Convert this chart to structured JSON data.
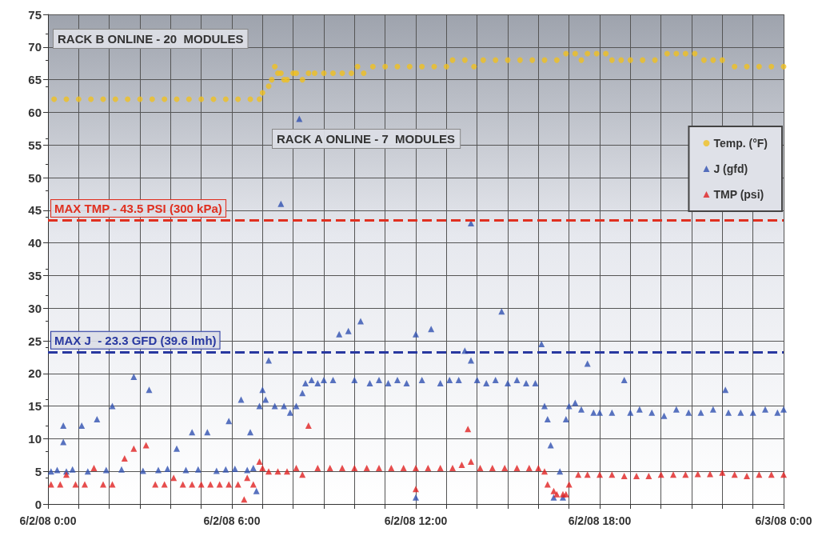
{
  "chart_data": {
    "type": "scatter",
    "marker": "triangle",
    "grid": true,
    "legend": "top right",
    "xlim": [
      "--06-02T00:00",
      "--06-03T00:00"
    ],
    "xticks": [
      {
        "value": "--06-02T00:00",
        "label": "6/2/08 0:00"
      },
      {
        "value": "--06-02T01:00",
        "label": null
      },
      {
        "value": "--06-02T02:00",
        "label": null
      },
      {
        "value": "--06-02T03:00",
        "label": null
      },
      {
        "value": "--06-02T04:00",
        "label": null
      },
      {
        "value": "--06-02T05:00",
        "label": null
      },
      {
        "value": "--06-02T06:00",
        "label": "6/2/08 6:00"
      },
      {
        "value": "--06-02T07:00",
        "label": null
      },
      {
        "value": "--06-02T08:00",
        "label": null
      },
      {
        "value": "--06-02T09:00",
        "label": null
      },
      {
        "value": "--06-02T10:00",
        "label": null
      },
      {
        "value": "--06-02T11:00",
        "label": null
      },
      {
        "value": "--06-02T12:00",
        "label": "6/2/08 12:00"
      },
      {
        "value": "--06-02T13:00",
        "label": null
      },
      {
        "value": "--06-02T14:00",
        "label": null
      },
      {
        "value": "--06-02T15:00",
        "label": null
      },
      {
        "value": "--06-02T16:00",
        "label": null
      },
      {
        "value": "--06-02T17:00",
        "label": null
      },
      {
        "value": "--06-02T18:00",
        "label": "6/2/08 18:00"
      },
      {
        "value": "--06-02T19:00",
        "label": null
      },
      {
        "value": "--06-02T20:00",
        "label": null
      },
      {
        "value": "--06-02T21:00",
        "label": null
      },
      {
        "value": "--06-02T22:00",
        "label": null
      },
      {
        "value": "--06-02T23:00",
        "label": null
      },
      {
        "value": "--06-03T00:00",
        "label": "6/3/08 0:00"
      }
    ],
    "ylim": [
      0,
      75
    ],
    "yticks": [
      0,
      5,
      10,
      15,
      20,
      25,
      30,
      35,
      40,
      45,
      50,
      55,
      60,
      65,
      70,
      75
    ],
    "ref_lines": [
      {
        "axis": "y",
        "value": 43.5,
        "label": "MAX TMP - 43.5 PSI (300 kPa)",
        "color": "#e03020",
        "line_style": "dashed"
      },
      {
        "axis": "y",
        "value": 23.3,
        "label": "MAX J  - 23.3 GFD (39.6 lmh)",
        "color": "#2838a0",
        "line_style": "dashed"
      }
    ],
    "annotations": [
      "RACK B ONLINE - 20  MODULES",
      "RACK A ONLINE - 7  MODULES"
    ],
    "series": [
      {
        "name": "Temp. (°F)",
        "color": "#f0c020",
        "marker": "circle",
        "x": [
          "--06-02T00:12",
          "--06-02T00:36",
          "--06-02T01:00",
          "--06-02T01:24",
          "--06-02T01:48",
          "--06-02T02:12",
          "--06-02T02:36",
          "--06-02T03:00",
          "--06-02T03:24",
          "--06-02T03:48",
          "--06-02T04:12",
          "--06-02T04:36",
          "--06-02T05:00",
          "--06-02T05:24",
          "--06-02T05:48",
          "--06-02T06:12",
          "--06-02T06:36",
          "--06-02T06:54",
          "--06-02T07:00",
          "--06-02T07:12",
          "--06-02T07:18",
          "--06-02T07:24",
          "--06-02T07:30",
          "--06-02T07:36",
          "--06-02T07:42",
          "--06-02T07:48",
          "--06-02T08:00",
          "--06-02T08:06",
          "--06-02T08:18",
          "--06-02T08:30",
          "--06-02T08:42",
          "--06-02T09:00",
          "--06-02T09:18",
          "--06-02T09:36",
          "--06-02T09:54",
          "--06-02T10:06",
          "--06-02T10:18",
          "--06-02T10:36",
          "--06-02T11:00",
          "--06-02T11:24",
          "--06-02T11:48",
          "--06-02T12:12",
          "--06-02T12:36",
          "--06-02T13:00",
          "--06-02T13:12",
          "--06-02T13:36",
          "--06-02T13:54",
          "--06-02T14:12",
          "--06-02T14:36",
          "--06-02T15:00",
          "--06-02T15:24",
          "--06-02T15:48",
          "--06-02T16:12",
          "--06-02T16:36",
          "--06-02T16:54",
          "--06-02T17:12",
          "--06-02T17:24",
          "--06-02T17:36",
          "--06-02T17:54",
          "--06-02T18:12",
          "--06-02T18:24",
          "--06-02T18:42",
          "--06-02T19:00",
          "--06-02T19:24",
          "--06-02T19:48",
          "--06-02T20:12",
          "--06-02T20:30",
          "--06-02T20:48",
          "--06-02T21:06",
          "--06-02T21:24",
          "--06-02T21:42",
          "--06-02T22:00",
          "--06-02T22:24",
          "--06-02T22:48",
          "--06-02T23:12",
          "--06-02T23:36",
          "--06-03T00:00"
        ],
        "values": [
          62,
          62,
          62,
          62,
          62,
          62,
          62,
          62,
          62,
          62,
          62,
          62,
          62,
          62,
          62,
          62,
          62,
          62,
          63,
          64,
          65,
          67,
          66,
          66,
          65,
          65,
          66,
          66,
          65,
          66,
          66,
          66,
          66,
          66,
          66,
          67,
          66,
          67,
          67,
          67,
          67,
          67,
          67,
          67,
          68,
          68,
          67,
          68,
          68,
          68,
          68,
          68,
          68,
          68,
          69,
          69,
          68,
          69,
          69,
          69,
          68,
          68,
          68,
          68,
          68,
          69,
          69,
          69,
          69,
          68,
          68,
          68,
          67,
          67,
          67,
          67,
          67
        ]
      },
      {
        "name": "J (gfd)",
        "color": "#3050b0",
        "x": [
          "--06-02T00:06",
          "--06-02T00:18",
          "--06-02T00:30",
          "--06-02T00:30",
          "--06-02T00:36",
          "--06-02T00:48",
          "--06-02T01:06",
          "--06-02T01:18",
          "--06-02T01:36",
          "--06-02T01:54",
          "--06-02T02:06",
          "--06-02T02:24",
          "--06-02T02:48",
          "--06-02T03:06",
          "--06-02T03:18",
          "--06-02T03:36",
          "--06-02T03:54",
          "--06-02T04:12",
          "--06-02T04:30",
          "--06-02T04:42",
          "--06-02T04:54",
          "--06-02T05:12",
          "--06-02T05:30",
          "--06-02T05:48",
          "--06-02T05:54",
          "--06-02T06:06",
          "--06-02T06:18",
          "--06-02T06:30",
          "--06-02T06:36",
          "--06-02T06:42",
          "--06-02T06:48",
          "--06-02T06:54",
          "--06-02T07:00",
          "--06-02T07:06",
          "--06-02T07:12",
          "--06-02T07:24",
          "--06-02T07:36",
          "--06-02T07:42",
          "--06-02T07:54",
          "--06-02T08:06",
          "--06-02T08:12",
          "--06-02T08:18",
          "--06-02T08:24",
          "--06-02T08:36",
          "--06-02T08:48",
          "--06-02T09:00",
          "--06-02T09:18",
          "--06-02T09:30",
          "--06-02T09:48",
          "--06-02T10:00",
          "--06-02T10:12",
          "--06-02T10:30",
          "--06-02T10:48",
          "--06-02T11:06",
          "--06-02T11:24",
          "--06-02T11:42",
          "--06-02T12:00",
          "--06-02T12:00",
          "--06-02T12:12",
          "--06-02T12:30",
          "--06-02T12:48",
          "--06-02T13:06",
          "--06-02T13:24",
          "--06-02T13:36",
          "--06-02T13:48",
          "--06-02T13:48",
          "--06-02T14:00",
          "--06-02T14:18",
          "--06-02T14:36",
          "--06-02T14:48",
          "--06-02T15:00",
          "--06-02T15:18",
          "--06-02T15:36",
          "--06-02T15:54",
          "--06-02T16:06",
          "--06-02T16:12",
          "--06-02T16:18",
          "--06-02T16:24",
          "--06-02T16:30",
          "--06-02T16:42",
          "--06-02T16:48",
          "--06-02T16:54",
          "--06-02T17:00",
          "--06-02T17:12",
          "--06-02T17:24",
          "--06-02T17:36",
          "--06-02T17:48",
          "--06-02T18:00",
          "--06-02T18:24",
          "--06-02T18:48",
          "--06-02T19:00",
          "--06-02T19:18",
          "--06-02T19:42",
          "--06-02T20:06",
          "--06-02T20:30",
          "--06-02T20:54",
          "--06-02T21:18",
          "--06-02T21:42",
          "--06-02T22:06",
          "--06-02T22:12",
          "--06-02T22:36",
          "--06-02T23:00",
          "--06-02T23:24",
          "--06-02T23:48",
          "--06-03T00:00"
        ],
        "values": [
          5,
          5.2,
          12,
          9.5,
          5,
          5.3,
          12,
          5,
          13,
          5.2,
          15,
          5.3,
          19.5,
          5.1,
          17.5,
          5.2,
          5.4,
          8.5,
          5.2,
          11,
          5.3,
          11,
          5.1,
          5.3,
          12.7,
          5.4,
          16,
          5.2,
          11,
          5.5,
          2,
          15,
          17.5,
          16,
          22,
          15,
          46,
          15,
          14,
          15,
          59,
          17,
          18.5,
          19,
          18.5,
          19,
          19,
          26,
          26.5,
          19,
          28,
          18.5,
          19,
          18.5,
          19,
          18.5,
          26,
          1,
          19,
          26.8,
          18.5,
          19,
          19,
          23.5,
          43,
          22,
          19,
          18.5,
          19,
          29.5,
          18.5,
          19,
          18.5,
          18.5,
          24.5,
          15,
          13,
          9,
          1,
          5,
          1,
          13,
          15,
          15.5,
          14.5,
          21.5,
          14,
          14,
          14,
          19,
          14,
          14.5,
          14,
          13.5,
          14.5,
          14,
          14,
          14.5,
          17.5,
          14,
          14,
          14,
          14.5,
          14,
          14.5
        ]
      },
      {
        "name": "TMP (psi)",
        "color": "#e02020",
        "x": [
          "--06-02T00:06",
          "--06-02T00:24",
          "--06-02T00:36",
          "--06-02T00:54",
          "--06-02T01:12",
          "--06-02T01:30",
          "--06-02T01:48",
          "--06-02T02:06",
          "--06-02T02:30",
          "--06-02T02:48",
          "--06-02T03:12",
          "--06-02T03:30",
          "--06-02T03:48",
          "--06-02T04:06",
          "--06-02T04:24",
          "--06-02T04:42",
          "--06-02T05:00",
          "--06-02T05:18",
          "--06-02T05:36",
          "--06-02T05:54",
          "--06-02T06:12",
          "--06-02T06:24",
          "--06-02T06:30",
          "--06-02T06:42",
          "--06-02T06:54",
          "--06-02T07:00",
          "--06-02T07:12",
          "--06-02T07:30",
          "--06-02T07:48",
          "--06-02T08:06",
          "--06-02T08:18",
          "--06-02T08:30",
          "--06-02T08:48",
          "--06-02T09:12",
          "--06-02T09:36",
          "--06-02T10:00",
          "--06-02T10:24",
          "--06-02T10:48",
          "--06-02T11:12",
          "--06-02T11:36",
          "--06-02T12:00",
          "--06-02T12:00",
          "--06-02T12:24",
          "--06-02T12:48",
          "--06-02T13:12",
          "--06-02T13:30",
          "--06-02T13:42",
          "--06-02T13:48",
          "--06-02T14:06",
          "--06-02T14:30",
          "--06-02T14:54",
          "--06-02T15:18",
          "--06-02T15:42",
          "--06-02T16:00",
          "--06-02T16:12",
          "--06-02T16:18",
          "--06-02T16:30",
          "--06-02T16:36",
          "--06-02T16:48",
          "--06-02T16:54",
          "--06-02T17:00",
          "--06-02T17:18",
          "--06-02T17:36",
          "--06-02T18:00",
          "--06-02T18:24",
          "--06-02T18:48",
          "--06-02T19:12",
          "--06-02T19:36",
          "--06-02T20:00",
          "--06-02T20:24",
          "--06-02T20:48",
          "--06-02T21:12",
          "--06-02T21:36",
          "--06-02T22:00",
          "--06-02T22:24",
          "--06-02T22:48",
          "--06-02T23:12",
          "--06-02T23:36",
          "--06-03T00:00"
        ],
        "values": [
          3,
          3,
          4.5,
          3,
          3,
          5.5,
          3,
          3,
          7,
          8.5,
          9,
          3,
          3,
          4,
          3,
          3,
          3,
          3,
          3,
          3,
          3,
          0.7,
          4,
          3,
          6.5,
          5.5,
          5,
          5,
          5,
          5.5,
          4.5,
          12,
          5.5,
          5.5,
          5.5,
          5.5,
          5.5,
          5.5,
          5.5,
          5.5,
          5.5,
          2.3,
          5.5,
          5.5,
          5.5,
          6,
          11.5,
          6.5,
          5.5,
          5.5,
          5.5,
          5.5,
          5.5,
          5.5,
          5,
          3,
          2,
          1.5,
          1.5,
          1.5,
          3,
          4.5,
          4.5,
          4.5,
          4.5,
          4.3,
          4.3,
          4.3,
          4.5,
          4.5,
          4.5,
          4.6,
          4.6,
          4.8,
          4.5,
          4.3,
          4.5,
          4.5,
          4.5
        ]
      }
    ]
  }
}
